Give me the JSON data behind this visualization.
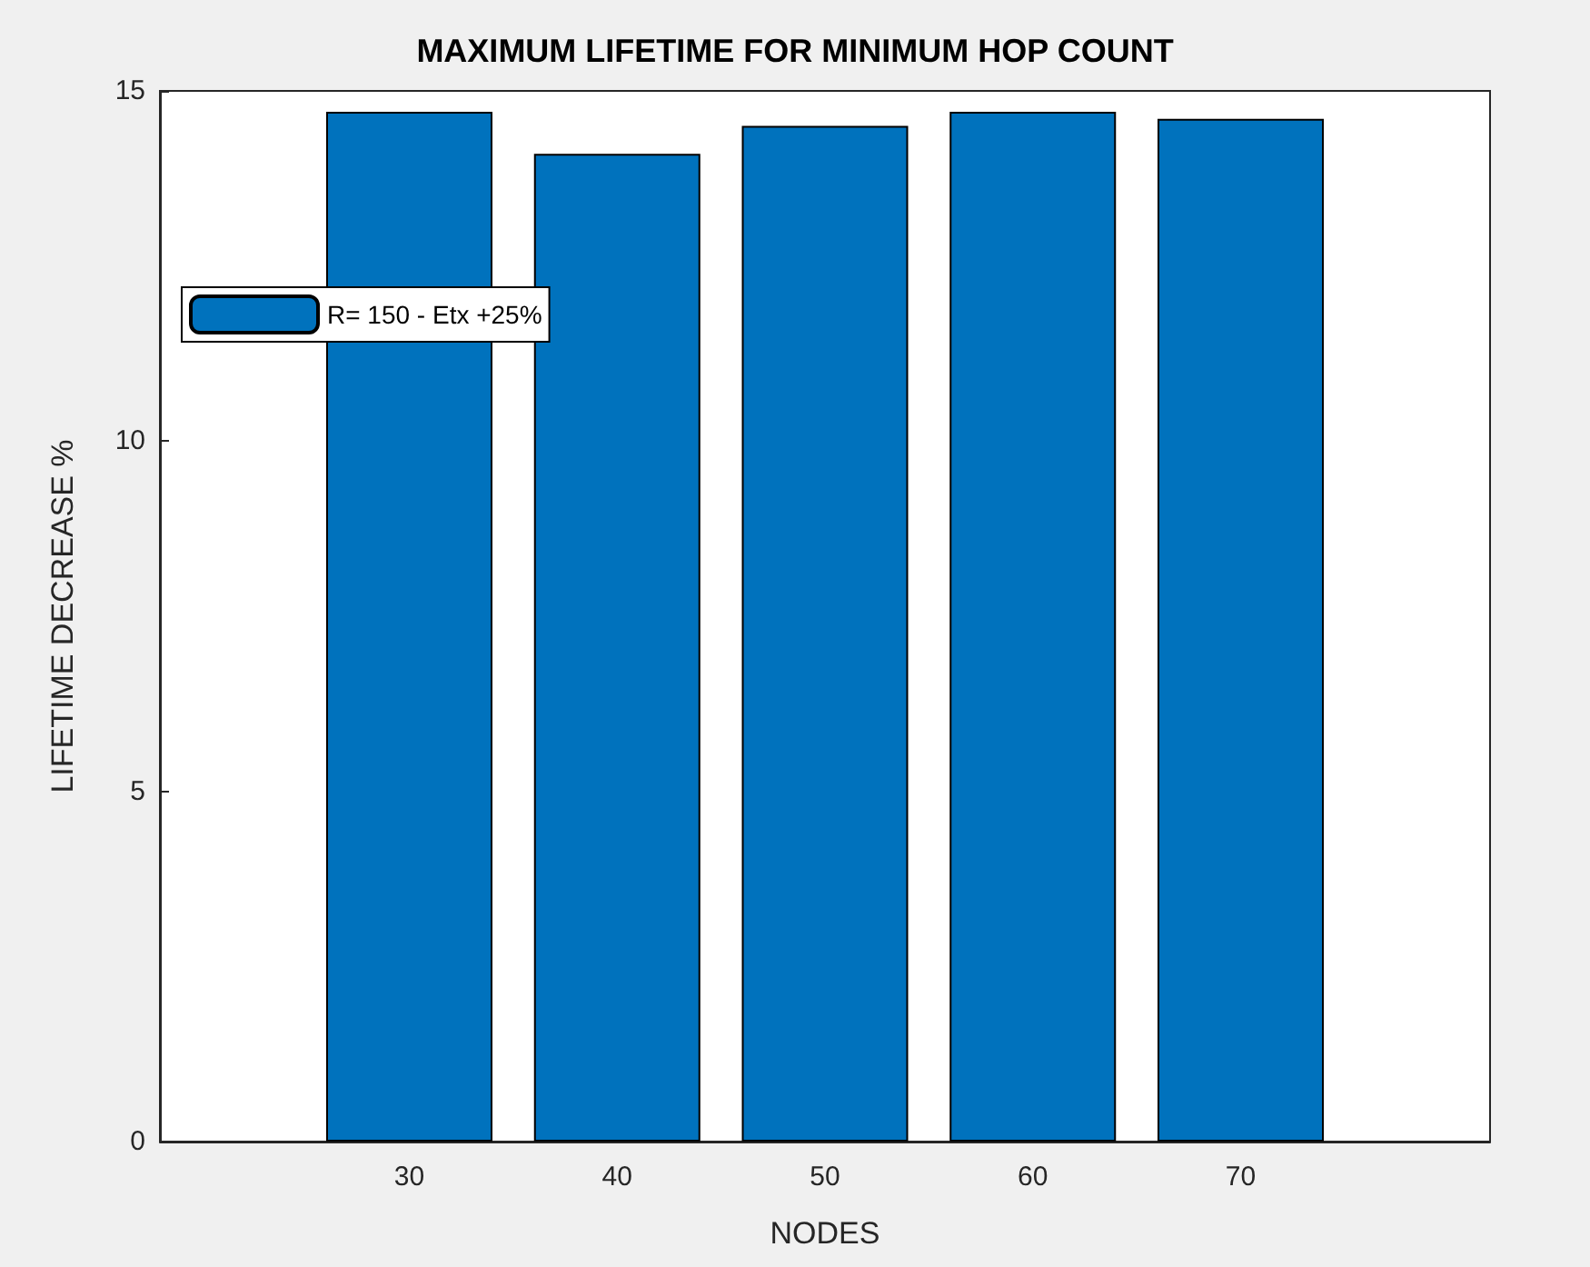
{
  "chart_data": {
    "type": "bar",
    "title": "MAXIMUM LIFETIME FOR MINIMUM HOP COUNT",
    "xlabel": "NODES",
    "ylabel": "LIFETIME DECREASE %",
    "x": [
      30,
      40,
      50,
      60,
      70
    ],
    "series": [
      {
        "name": "R= 150 - Etx +25%",
        "color": "#0072bd",
        "values": [
          14.7,
          14.1,
          14.5,
          14.7,
          14.6
        ]
      }
    ],
    "xlim": [
      18,
      82
    ],
    "xticks": [
      30,
      40,
      50,
      60,
      70
    ],
    "ylim": [
      0,
      15
    ],
    "yticks": [
      0,
      5,
      10,
      15
    ],
    "legend": "top left",
    "grid": false
  }
}
